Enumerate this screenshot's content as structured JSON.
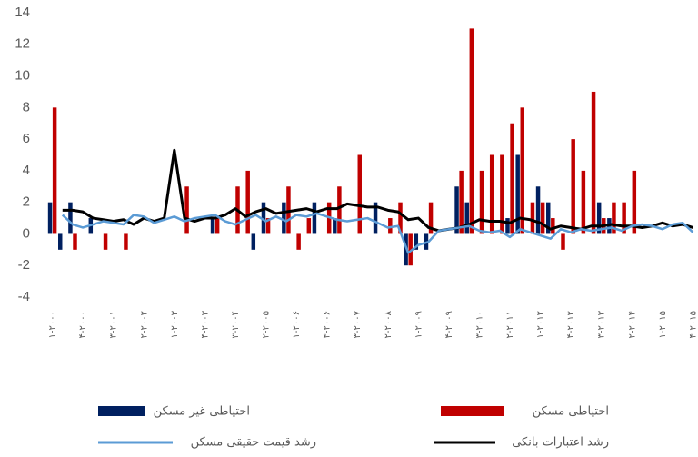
{
  "chart_data": {
    "type": "bar",
    "categories": [
      "۱-۲۰۰۰",
      null,
      null,
      "۴-۲۰۰۰",
      null,
      null,
      "۳-۲۰۰۱",
      null,
      null,
      "۲-۲۰۰۲",
      null,
      null,
      "۱-۲۰۰۳",
      null,
      null,
      "۴-۲۰۰۳",
      null,
      null,
      "۳-۲۰۰۴",
      null,
      null,
      "۲-۲۰۰۵",
      null,
      null,
      "۱-۲۰۰۶",
      null,
      null,
      "۴-۲۰۰۶",
      null,
      null,
      "۳-۲۰۰۷",
      null,
      null,
      "۲-۲۰۰۸",
      null,
      null,
      "۱-۲۰۰۹",
      null,
      null,
      "۴-۲۰۰۹",
      null,
      null,
      "۳-۲۰۱۰",
      null,
      null,
      "۲-۲۰۱۱",
      null,
      null,
      "۱-۲۰۱۲",
      null,
      null,
      "۴-۲۰۱۲",
      null,
      null,
      "۳-۲۰۱۳",
      null,
      null,
      "۲-۲۰۱۴",
      null,
      null,
      "۱-۲۰۱۵",
      null,
      null,
      "۴-۲۰۱۵"
    ],
    "series": [
      {
        "name": "احتیاطی مسکن",
        "type": "bar",
        "color": "#c00000",
        "values": [
          8,
          0,
          -1,
          0,
          0,
          -1,
          0,
          -1,
          0,
          0,
          0,
          0,
          0,
          3,
          0,
          0,
          1,
          0,
          3,
          4,
          0,
          1,
          0,
          3,
          -1,
          1,
          0,
          2,
          3,
          0,
          5,
          0,
          0,
          1,
          2,
          -2,
          0,
          2,
          0,
          0,
          4,
          13,
          4,
          5,
          5,
          7,
          8,
          2,
          2,
          1,
          -1,
          6,
          4,
          9,
          1,
          2,
          2,
          4,
          0,
          0,
          0,
          0,
          0,
          0
        ]
      },
      {
        "name": "احتیاطی غیر مسکن",
        "type": "bar",
        "color": "#002060",
        "values": [
          2,
          -1,
          2,
          0,
          1,
          0,
          0,
          0,
          0,
          0,
          0,
          0,
          0,
          0,
          0,
          0,
          1,
          0,
          0,
          0,
          -1,
          2,
          0,
          2,
          0,
          0,
          2,
          0,
          1,
          0,
          0,
          0,
          2,
          0,
          0,
          -2,
          -1,
          -1,
          0,
          0,
          3,
          2,
          0,
          0,
          0,
          1,
          5,
          0,
          3,
          2,
          0,
          0,
          0,
          0,
          2,
          1,
          0,
          0,
          0,
          0,
          0,
          0,
          0,
          0
        ]
      },
      {
        "name": "رشد اعتبارات بانکی",
        "type": "line",
        "color": "#000000",
        "values": [
          null,
          1.5,
          1.5,
          1.4,
          1,
          0.9,
          0.8,
          0.9,
          0.6,
          1,
          0.8,
          1,
          5.3,
          1,
          0.8,
          1,
          1,
          1.2,
          1.6,
          1.1,
          1.4,
          1.6,
          1.3,
          1.4,
          1.5,
          1.6,
          1.4,
          1.6,
          1.6,
          1.9,
          1.8,
          1.7,
          1.7,
          1.5,
          1.4,
          0.9,
          1,
          0.4,
          0.2,
          0.3,
          0.4,
          0.6,
          0.9,
          0.8,
          0.8,
          0.7,
          1,
          0.9,
          0.7,
          0.3,
          0.5,
          0.4,
          0.3,
          0.5,
          0.5,
          0.6,
          0.5,
          0.5,
          0.4,
          0.5,
          0.7,
          0.5,
          0.6,
          0.4
        ]
      },
      {
        "name": "رشد قیمت حقیقی مسکن",
        "type": "line",
        "color": "#5b9bd5",
        "values": [
          null,
          1.2,
          0.6,
          0.4,
          0.6,
          0.8,
          0.7,
          0.6,
          1.2,
          1.1,
          0.7,
          0.9,
          1.1,
          0.8,
          1,
          1.1,
          1.2,
          0.8,
          0.6,
          0.9,
          1.2,
          0.8,
          1.1,
          0.8,
          1.2,
          1.1,
          1.3,
          1.1,
          0.9,
          0.8,
          0.9,
          1,
          0.7,
          0.4,
          0.5,
          -1.2,
          -0.7,
          -0.5,
          0.2,
          0.3,
          0.4,
          0.5,
          0.2,
          0.1,
          0.2,
          -0.2,
          0.3,
          0.1,
          -0.1,
          -0.3,
          0.3,
          0.1,
          0.3,
          0.2,
          0.3,
          0.4,
          0.2,
          0.5,
          0.6,
          0.5,
          0.3,
          0.6,
          0.7,
          0.1
        ]
      }
    ],
    "ylim": [
      -4,
      14
    ],
    "yticks": [
      -4,
      -2,
      0,
      2,
      4,
      6,
      8,
      10,
      12,
      14
    ],
    "grid": false
  }
}
